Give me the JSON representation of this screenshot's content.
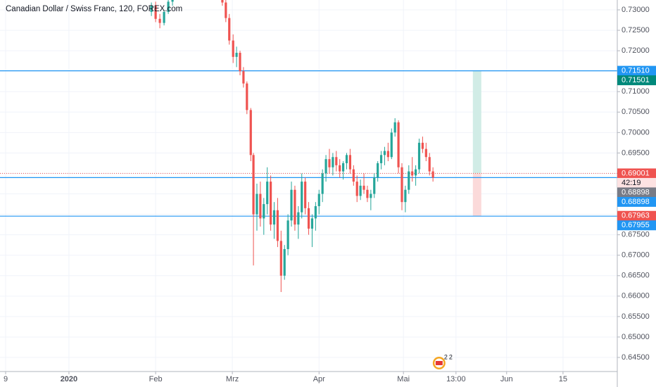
{
  "chart_data": {
    "type": "candlestick",
    "title": "Canadian Dollar / Swiss Franc, 120, FOREX.com",
    "up_color": "#26a69a",
    "down_color": "#ef5350",
    "grid": true,
    "xlim": [
      -1.47,
      159.45
    ],
    "ylim": [
      0.64156,
      0.73241
    ],
    "xticks": [
      {
        "value": 0,
        "label": "9"
      },
      {
        "value": 16.5,
        "label": "2020"
      },
      {
        "value": 39.1,
        "label": "Feb"
      },
      {
        "value": 59.1,
        "label": "Mrz"
      },
      {
        "value": 81.7,
        "label": "Apr"
      },
      {
        "value": 103.7,
        "label": "Mai"
      },
      {
        "value": 117.4,
        "label": "13:00"
      },
      {
        "value": 130.6,
        "label": "Jun"
      },
      {
        "value": 145.3,
        "label": "15"
      }
    ],
    "yticks": [
      {
        "value": 0.645,
        "label": "0.64500"
      },
      {
        "value": 0.65,
        "label": "0.65000"
      },
      {
        "value": 0.655,
        "label": "0.65500"
      },
      {
        "value": 0.66,
        "label": "0.66000"
      },
      {
        "value": 0.665,
        "label": "0.66500"
      },
      {
        "value": 0.67,
        "label": "0.67000"
      },
      {
        "value": 0.675,
        "label": "0.67500"
      },
      {
        "value": 0.68,
        "label": "0.68000"
      },
      {
        "value": 0.685,
        "label": "0.68500"
      },
      {
        "value": 0.69,
        "label": "0.69000"
      },
      {
        "value": 0.695,
        "label": "0.69500"
      },
      {
        "value": 0.7,
        "label": "0.70000"
      },
      {
        "value": 0.705,
        "label": "0.70500"
      },
      {
        "value": 0.71,
        "label": "0.71000"
      },
      {
        "value": 0.715,
        "label": "0.71500"
      },
      {
        "value": 0.72,
        "label": "0.72000"
      },
      {
        "value": 0.725,
        "label": "0.72500"
      },
      {
        "value": 0.73,
        "label": "0.73000"
      }
    ],
    "x": [
      38.0,
      39.1,
      40.2,
      41.3,
      42.4,
      43.5,
      56.5,
      57.4,
      58.3,
      59.3,
      60.2,
      61.1,
      62.0,
      62.9,
      63.9,
      64.6,
      65.5,
      66.4,
      67.3,
      68.2,
      69.1,
      70.0,
      70.9,
      71.8,
      72.7,
      73.6,
      74.5,
      75.4,
      76.3,
      77.2,
      78.1,
      79.0,
      79.9,
      80.8,
      81.7,
      82.6,
      83.5,
      84.4,
      85.3,
      86.2,
      87.1,
      88.0,
      88.9,
      89.8,
      90.7,
      91.6,
      92.5,
      93.4,
      94.3,
      95.2,
      96.1,
      97.0,
      97.9,
      98.8,
      99.7,
      100.6,
      101.5,
      102.4,
      103.3,
      104.2,
      105.1,
      106.0,
      106.9,
      107.8,
      108.7,
      109.6,
      110.5,
      111.4
    ],
    "open": [
      0.7295,
      0.731,
      0.7278,
      0.7268,
      0.7295,
      0.732,
      0.7345,
      0.7318,
      0.728,
      0.7225,
      0.7185,
      0.7195,
      0.715,
      0.712,
      0.7055,
      0.6945,
      0.68,
      0.685,
      0.679,
      0.6825,
      0.688,
      0.6775,
      0.681,
      0.6735,
      0.665,
      0.6715,
      0.6785,
      0.686,
      0.6775,
      0.6805,
      0.688,
      0.6815,
      0.6765,
      0.679,
      0.682,
      0.685,
      0.69,
      0.6935,
      0.6915,
      0.694,
      0.692,
      0.6905,
      0.6925,
      0.6945,
      0.691,
      0.688,
      0.6845,
      0.687,
      0.686,
      0.684,
      0.685,
      0.689,
      0.6925,
      0.6945,
      0.6955,
      0.694,
      0.7,
      0.7025,
      0.6915,
      0.683,
      0.686,
      0.6905,
      0.6895,
      0.691,
      0.6975,
      0.696,
      0.694,
      0.6905
    ],
    "high": [
      0.7318,
      0.732,
      0.729,
      0.73,
      0.7325,
      0.7345,
      0.735,
      0.7325,
      0.729,
      0.724,
      0.721,
      0.72,
      0.716,
      0.7125,
      0.706,
      0.695,
      0.6875,
      0.688,
      0.684,
      0.6915,
      0.6895,
      0.683,
      0.684,
      0.676,
      0.6725,
      0.68,
      0.688,
      0.687,
      0.682,
      0.69,
      0.689,
      0.683,
      0.68,
      0.683,
      0.686,
      0.691,
      0.6945,
      0.696,
      0.695,
      0.6955,
      0.6935,
      0.693,
      0.695,
      0.696,
      0.692,
      0.6895,
      0.6885,
      0.69,
      0.687,
      0.686,
      0.69,
      0.693,
      0.6955,
      0.6965,
      0.6975,
      0.701,
      0.7035,
      0.703,
      0.6925,
      0.687,
      0.692,
      0.694,
      0.692,
      0.6985,
      0.699,
      0.6975,
      0.695,
      0.6915
    ],
    "low": [
      0.7285,
      0.727,
      0.7255,
      0.7262,
      0.729,
      0.731,
      0.731,
      0.727,
      0.7215,
      0.717,
      0.716,
      0.714,
      0.711,
      0.7045,
      0.693,
      0.6675,
      0.676,
      0.677,
      0.675,
      0.68,
      0.676,
      0.674,
      0.672,
      0.661,
      0.664,
      0.67,
      0.677,
      0.676,
      0.674,
      0.679,
      0.68,
      0.675,
      0.672,
      0.676,
      0.68,
      0.683,
      0.688,
      0.69,
      0.6895,
      0.6905,
      0.689,
      0.6885,
      0.691,
      0.69,
      0.687,
      0.683,
      0.6835,
      0.685,
      0.683,
      0.681,
      0.684,
      0.688,
      0.691,
      0.692,
      0.693,
      0.6935,
      0.699,
      0.69,
      0.681,
      0.6805,
      0.685,
      0.688,
      0.687,
      0.69,
      0.695,
      0.693,
      0.6895,
      0.688
    ],
    "close": [
      0.731,
      0.7278,
      0.7268,
      0.7295,
      0.732,
      0.734,
      0.7318,
      0.728,
      0.7225,
      0.7185,
      0.7195,
      0.715,
      0.712,
      0.7055,
      0.6945,
      0.68,
      0.685,
      0.679,
      0.6825,
      0.688,
      0.6775,
      0.681,
      0.6735,
      0.665,
      0.6715,
      0.6785,
      0.686,
      0.6775,
      0.6805,
      0.688,
      0.6815,
      0.6765,
      0.679,
      0.682,
      0.685,
      0.69,
      0.6935,
      0.6915,
      0.694,
      0.692,
      0.6905,
      0.6925,
      0.6945,
      0.691,
      0.688,
      0.6845,
      0.687,
      0.686,
      0.684,
      0.685,
      0.689,
      0.6925,
      0.6945,
      0.6955,
      0.694,
      0.7,
      0.7025,
      0.6915,
      0.683,
      0.686,
      0.6905,
      0.6895,
      0.691,
      0.6975,
      0.696,
      0.694,
      0.6905,
      0.68898
    ],
    "hlines": [
      {
        "value": 0.7151,
        "color": "#2196f3",
        "style": "solid"
      },
      {
        "value": 0.68898,
        "color": "#2196f3",
        "style": "solid"
      },
      {
        "value": 0.67955,
        "color": "#2196f3",
        "style": "solid"
      },
      {
        "value": 0.69001,
        "color": "#ef5350",
        "style": "dotted"
      }
    ],
    "position": {
      "x": [
        121.8,
        124.0
      ],
      "entry": 0.69001,
      "target": 0.7151,
      "stop": 0.67963,
      "profit_color": "#d1ece6",
      "loss_color": "#fbdada"
    },
    "price_labels": [
      {
        "value": 0.7151,
        "label": "0.71510",
        "color": "#2196f3"
      },
      {
        "value": 0.71501,
        "label": "0.71501",
        "color": "#00897b"
      },
      {
        "value": 0.69001,
        "label": "0.69001",
        "color": "#ef5350"
      },
      {
        "value": 0.68898,
        "label": "0.68898",
        "color": "#787b86"
      },
      {
        "value": 0.68898,
        "label": "0.68898",
        "color": "#2196f3"
      },
      {
        "value": 0.67963,
        "label": "0.67963",
        "color": "#ef5350"
      },
      {
        "value": 0.67955,
        "label": "0.67955",
        "color": "#2196f3"
      }
    ],
    "countdown": "42:19",
    "event_badge": {
      "x": 113.0,
      "counts": [
        "2",
        "2"
      ]
    }
  }
}
